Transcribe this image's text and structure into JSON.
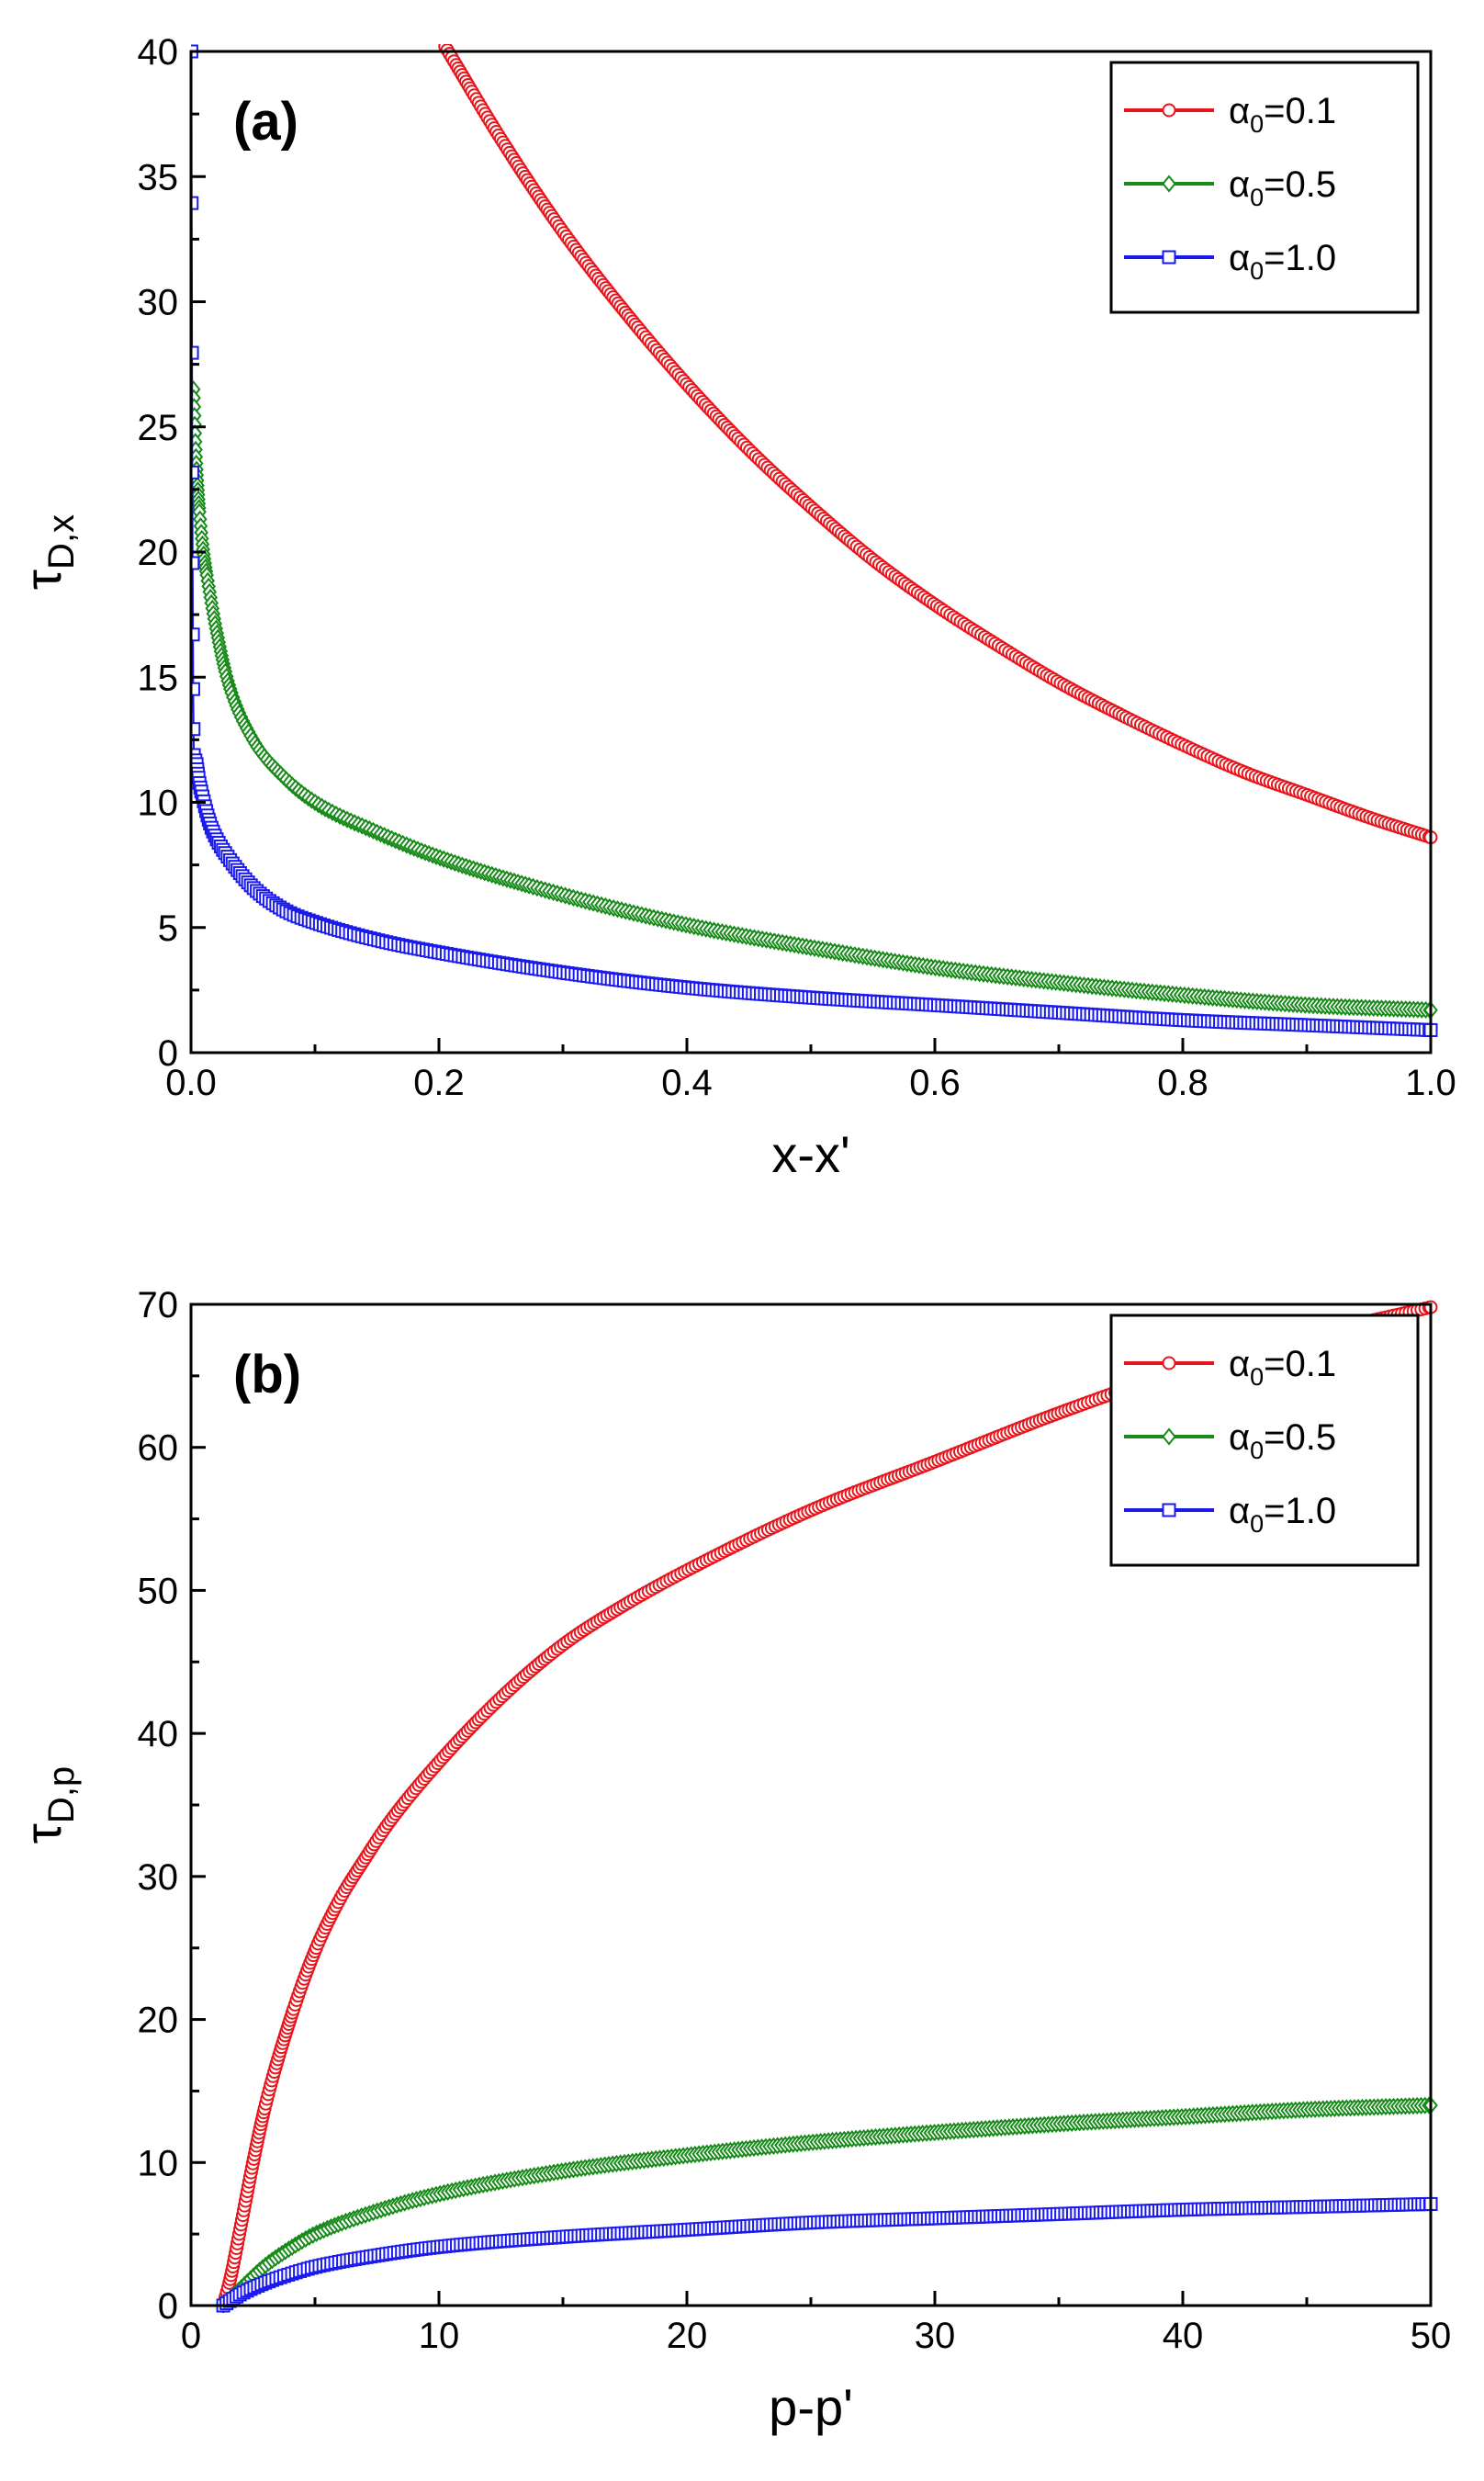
{
  "chart_data": [
    {
      "type": "scatter",
      "panel_label": "(a)",
      "xlabel": "x-x'",
      "ylabel": {
        "main": "τ",
        "sub": "D,x"
      },
      "xlim": [
        0,
        1.0
      ],
      "ylim": [
        0,
        40
      ],
      "xticks": [
        0,
        0.2,
        0.4,
        0.6,
        0.8,
        1.0
      ],
      "xtick_labels": [
        "0.0",
        "0.2",
        "0.4",
        "0.6",
        "0.8",
        "1.0"
      ],
      "yticks": [
        0,
        5,
        10,
        15,
        20,
        25,
        30,
        35,
        40
      ],
      "ytick_labels": [
        "0",
        "5",
        "10",
        "15",
        "20",
        "25",
        "30",
        "35",
        "40"
      ],
      "legend_position": "top-right",
      "series": [
        {
          "name": "α0=0.1",
          "label_main": "α",
          "label_sub": "0",
          "label_rest": "=0.1",
          "color": "#e8141c",
          "marker": "circle",
          "x": [
            0.205,
            0.25,
            0.3,
            0.35,
            0.4,
            0.45,
            0.5,
            0.55,
            0.6,
            0.65,
            0.7,
            0.75,
            0.8,
            0.85,
            0.9,
            0.95,
            1.0
          ],
          "y": [
            40.2,
            36.5,
            32.8,
            29.6,
            26.7,
            24.1,
            21.8,
            19.7,
            17.9,
            16.3,
            14.8,
            13.5,
            12.3,
            11.2,
            10.3,
            9.4,
            8.6
          ]
        },
        {
          "name": "α0=0.5",
          "label_main": "α",
          "label_sub": "0",
          "label_rest": "=0.5",
          "color": "#188a1a",
          "marker": "diamond",
          "x": [
            0.002,
            0.004,
            0.006,
            0.008,
            0.01,
            0.015,
            0.02,
            0.03,
            0.05,
            0.075,
            0.1,
            0.15,
            0.2,
            0.3,
            0.4,
            0.5,
            0.6,
            0.7,
            0.8,
            0.9,
            1.0
          ],
          "y": [
            26.5,
            23.8,
            22.1,
            20.9,
            20.0,
            18.4,
            17.0,
            14.8,
            12.5,
            11.0,
            10.0,
            8.8,
            7.8,
            6.3,
            5.1,
            4.2,
            3.4,
            2.8,
            2.3,
            1.9,
            1.7
          ]
        },
        {
          "name": "α0=1.0",
          "label_main": "α",
          "label_sub": "0",
          "label_rest": "=1.0",
          "color": "#1a1aee",
          "marker": "square",
          "x": [
            0.0003,
            0.001,
            0.002,
            0.004,
            0.006,
            0.01,
            0.015,
            0.02,
            0.03,
            0.05,
            0.075,
            0.1,
            0.15,
            0.2,
            0.3,
            0.4,
            0.5,
            0.6,
            0.7,
            0.8,
            0.9,
            1.0
          ],
          "y": [
            40.0,
            24.0,
            13.2,
            11.8,
            11.0,
            10.1,
            9.2,
            8.6,
            7.8,
            6.6,
            5.7,
            5.2,
            4.5,
            4.0,
            3.2,
            2.6,
            2.2,
            1.9,
            1.6,
            1.3,
            1.1,
            0.9
          ]
        }
      ]
    },
    {
      "type": "scatter",
      "panel_label": "(b)",
      "xlabel": "p-p'",
      "ylabel": {
        "main": "τ",
        "sub": "D,p"
      },
      "xlim": [
        0,
        50
      ],
      "ylim": [
        0,
        70
      ],
      "xticks": [
        0,
        10,
        20,
        30,
        40,
        50
      ],
      "xtick_labels": [
        "0",
        "10",
        "20",
        "30",
        "40",
        "50"
      ],
      "yticks": [
        0,
        10,
        20,
        30,
        40,
        50,
        60,
        70
      ],
      "ytick_labels": [
        "0",
        "10",
        "20",
        "30",
        "40",
        "50",
        "60",
        "70"
      ],
      "legend_position": "top-right",
      "series": [
        {
          "name": "α0=0.1",
          "label_main": "α",
          "label_sub": "0",
          "label_rest": "=0.1",
          "color": "#e8141c",
          "marker": "circle",
          "x": [
            1.3,
            1.6,
            2.0,
            2.5,
            3.0,
            4.0,
            5.0,
            6.0,
            7.0,
            8.0,
            10.0,
            12.5,
            15.0,
            17.5,
            20.0,
            25.0,
            30.0,
            35.0,
            40.0,
            45.0,
            50.0
          ],
          "y": [
            0.0,
            2.0,
            5.5,
            10.0,
            14.0,
            20.0,
            24.8,
            28.4,
            31.2,
            33.8,
            38.0,
            42.5,
            46.2,
            49.0,
            51.4,
            55.6,
            59.0,
            62.4,
            65.4,
            67.8,
            69.8
          ]
        },
        {
          "name": "α0=0.5",
          "label_main": "α",
          "label_sub": "0",
          "label_rest": "=0.5",
          "color": "#188a1a",
          "marker": "diamond",
          "x": [
            1.3,
            2.0,
            3.0,
            4.0,
            5.0,
            7.5,
            10.0,
            15.0,
            20.0,
            25.0,
            30.0,
            35.0,
            40.0,
            45.0,
            50.0
          ],
          "y": [
            0.0,
            1.2,
            2.8,
            4.0,
            5.0,
            6.6,
            7.8,
            9.4,
            10.5,
            11.4,
            12.1,
            12.7,
            13.2,
            13.7,
            14.0
          ]
        },
        {
          "name": "α0=1.0",
          "label_main": "α",
          "label_sub": "0",
          "label_rest": "=1.0",
          "color": "#1a1aee",
          "marker": "square",
          "x": [
            1.3,
            2.0,
            3.0,
            4.0,
            5.0,
            7.5,
            10.0,
            15.0,
            20.0,
            25.0,
            30.0,
            35.0,
            40.0,
            45.0,
            50.0
          ],
          "y": [
            0.0,
            0.8,
            1.6,
            2.2,
            2.7,
            3.5,
            4.1,
            4.8,
            5.3,
            5.8,
            6.1,
            6.4,
            6.7,
            6.9,
            7.1
          ]
        }
      ]
    }
  ]
}
